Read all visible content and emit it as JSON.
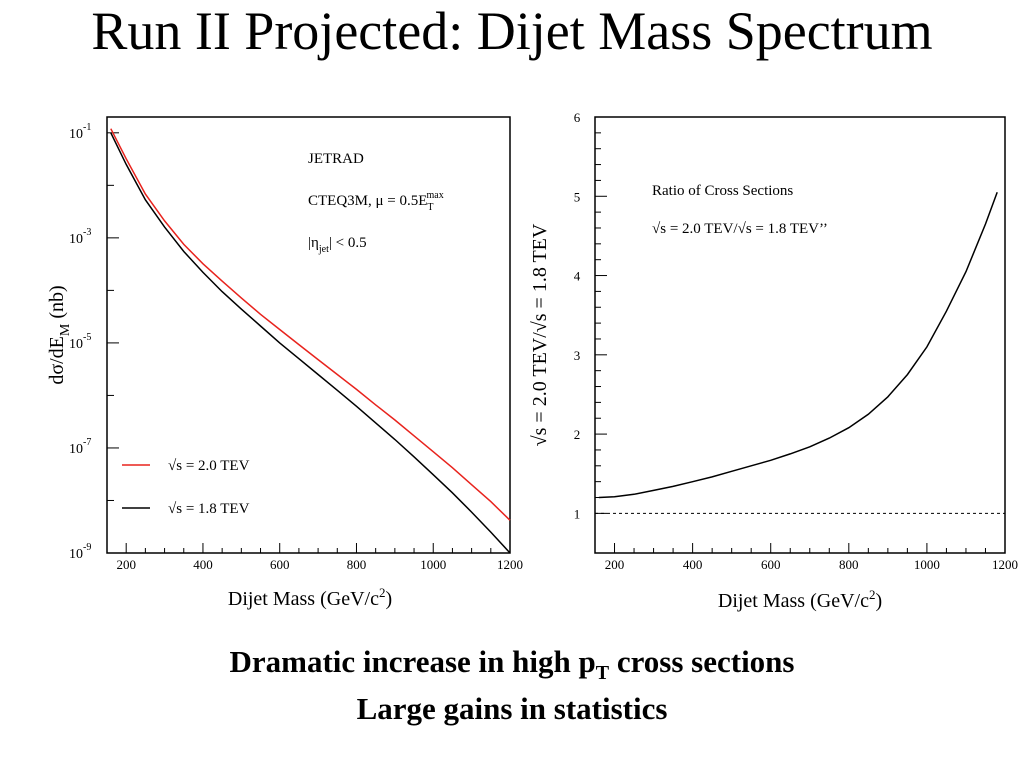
{
  "slide": {
    "title": "Run II Projected: Dijet Mass Spectrum",
    "caption_line1_pre": "Dramatic increase in high p",
    "caption_line1_sub": "T",
    "caption_line1_post": " cross sections",
    "caption_line2": "Large gains in statistics"
  },
  "chart_data": [
    {
      "type": "line",
      "xlabel": "Dijet Mass (GeV/c²)",
      "ylabel": "dσ/dE_M (nb)",
      "y_scale": "log",
      "xlim": [
        150,
        1200
      ],
      "ylim": [
        1e-09,
        0.2
      ],
      "x_ticks": [
        200,
        400,
        600,
        800,
        1000,
        1200
      ],
      "x_tick_labels": [
        "200",
        "400",
        "600",
        "800",
        "1000",
        "1200"
      ],
      "y_ticks": [
        1e-09,
        1e-07,
        1e-05,
        0.001,
        0.1
      ],
      "y_tick_bases": [
        "10",
        "10",
        "10",
        "10",
        "10"
      ],
      "y_tick_exponents": [
        "-9",
        "-7",
        "-5",
        "-3",
        "-1"
      ],
      "annotations": [
        "JETRAD",
        "CTEQ3M, μ = 0.5E",
        "|η",
        "| < 0.5"
      ],
      "annotation_parts": {
        "et_sub": "T",
        "et_sup": "max",
        "eta_sub": "jet"
      },
      "legend_position": "bottom-left",
      "series": [
        {
          "name": "√s = 2.0 TEV",
          "color": "#e8231d",
          "x": [
            160,
            200,
            250,
            300,
            350,
            400,
            450,
            500,
            550,
            600,
            650,
            700,
            750,
            800,
            850,
            900,
            950,
            1000,
            1050,
            1100,
            1150,
            1200
          ],
          "y": [
            0.12,
            0.032,
            0.0068,
            0.0021,
            0.00075,
            0.00032,
            0.00015,
            7.2e-05,
            3.5e-05,
            1.8e-05,
            9.3e-06,
            4.8e-06,
            2.5e-06,
            1.3e-06,
            6.6e-07,
            3.4e-07,
            1.7e-07,
            8.5e-08,
            4.2e-08,
            2e-08,
            9.5e-09,
            4.2e-09
          ]
        },
        {
          "name": "√s = 1.8 TEV",
          "color": "#000000",
          "x": [
            160,
            200,
            250,
            300,
            350,
            400,
            450,
            500,
            550,
            600,
            650,
            700,
            750,
            800,
            850,
            900,
            950,
            1000,
            1050,
            1100,
            1150,
            1200
          ],
          "y": [
            0.1,
            0.025,
            0.0053,
            0.0016,
            0.00055,
            0.00022,
            9.5e-05,
            4.4e-05,
            2.1e-05,
            1e-05,
            5e-06,
            2.5e-06,
            1.25e-06,
            6.2e-07,
            3e-07,
            1.45e-07,
            6.8e-08,
            3.1e-08,
            1.4e-08,
            6e-09,
            2.5e-09,
            1e-09
          ]
        }
      ]
    },
    {
      "type": "line",
      "xlabel": "Dijet Mass (GeV/c²)",
      "ylabel": "√s = 2.0 TEV/√s = 1.8 TEV",
      "xlim": [
        150,
        1200
      ],
      "ylim": [
        0.5,
        6
      ],
      "x_ticks": [
        200,
        400,
        600,
        800,
        1000,
        1200
      ],
      "x_tick_labels": [
        "200",
        "400",
        "600",
        "800",
        "1000",
        "1200"
      ],
      "y_ticks": [
        1,
        2,
        3,
        4,
        5,
        6
      ],
      "y_tick_labels": [
        "1",
        "2",
        "3",
        "4",
        "5",
        "6"
      ],
      "annotations": [
        "Ratio of Cross Sections",
        "√s = 2.0 TEV/√s = 1.8 TEV’’"
      ],
      "reference_line": {
        "y": 1,
        "style": "dashed"
      },
      "series": [
        {
          "color": "#000000",
          "x": [
            160,
            200,
            250,
            300,
            350,
            400,
            450,
            500,
            550,
            600,
            650,
            700,
            750,
            800,
            850,
            900,
            950,
            1000,
            1050,
            1100,
            1150,
            1180
          ],
          "y": [
            1.2,
            1.21,
            1.24,
            1.29,
            1.34,
            1.4,
            1.46,
            1.53,
            1.6,
            1.67,
            1.75,
            1.84,
            1.95,
            2.08,
            2.25,
            2.47,
            2.75,
            3.1,
            3.55,
            4.05,
            4.65,
            5.05
          ]
        }
      ]
    }
  ]
}
